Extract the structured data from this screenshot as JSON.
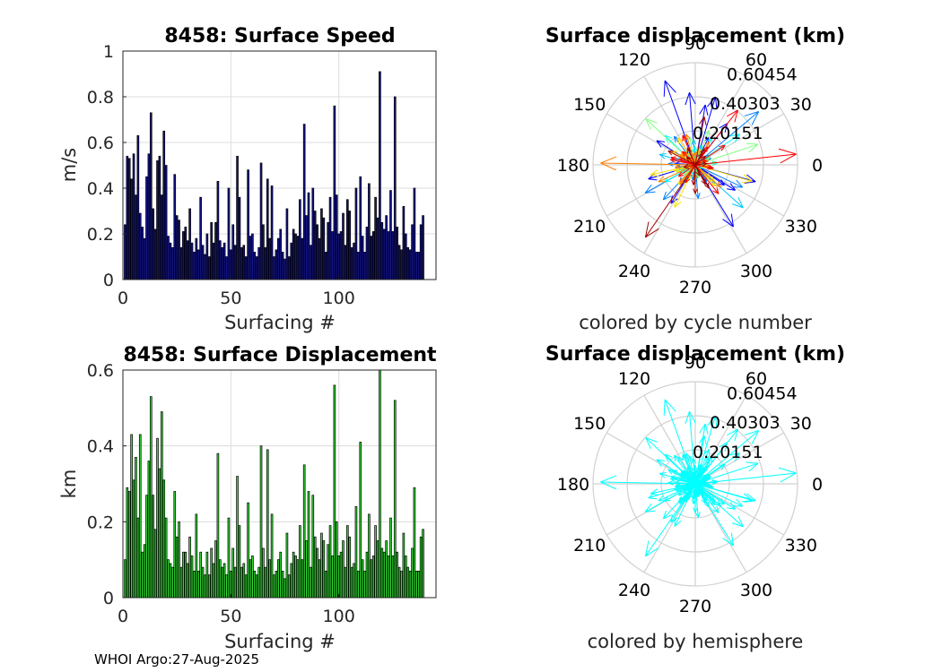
{
  "footer": "WHOI Argo:27-Aug-2025",
  "chart_data": [
    {
      "type": "bar",
      "title": "8458: Surface Speed",
      "xlabel": "Surfacing #",
      "ylabel": "m/s",
      "xlim": [
        0,
        145
      ],
      "ylim": [
        0,
        1
      ],
      "xticks": [
        "0",
        "50",
        "100"
      ],
      "yticks": [
        "0",
        "0.2",
        "0.4",
        "0.6",
        "0.8",
        "1"
      ],
      "bar_color": "#12128c",
      "values": [
        0.24,
        0.54,
        0.53,
        0.44,
        0.55,
        0.37,
        0.63,
        0.29,
        0.23,
        0.18,
        0.45,
        0.55,
        0.73,
        0.31,
        0.22,
        0.52,
        0.54,
        0.37,
        0.65,
        0.5,
        0.19,
        0.16,
        0.14,
        0.46,
        0.28,
        0.26,
        0.14,
        0.21,
        0.23,
        0.17,
        0.31,
        0.16,
        0.12,
        0.18,
        0.13,
        0.36,
        0.15,
        0.11,
        0.2,
        0.1,
        0.25,
        0.16,
        0.25,
        0.43,
        0.17,
        0.14,
        0.16,
        0.1,
        0.4,
        0.13,
        0.24,
        0.15,
        0.54,
        0.36,
        0.14,
        0.15,
        0.1,
        0.48,
        0.19,
        0.2,
        0.12,
        0.1,
        0.14,
        0.51,
        0.24,
        0.14,
        0.44,
        0.18,
        0.41,
        0.1,
        0.13,
        0.18,
        0.22,
        0.12,
        0.09,
        0.31,
        0.1,
        0.16,
        0.22,
        0.2,
        0.19,
        0.35,
        0.18,
        0.68,
        0.28,
        0.38,
        0.15,
        0.4,
        0.3,
        0.24,
        0.18,
        0.31,
        0.27,
        0.12,
        0.25,
        0.36,
        0.21,
        0.76,
        0.37,
        0.2,
        0.21,
        0.29,
        0.15,
        0.35,
        0.3,
        0.14,
        0.16,
        0.4,
        0.12,
        0.45,
        0.19,
        0.12,
        0.23,
        0.42,
        0.19,
        0.21,
        0.36,
        0.27,
        0.91,
        0.25,
        0.22,
        0.28,
        0.21,
        0.39,
        0.21,
        0.8,
        0.23,
        0.15,
        0.13,
        0.32,
        0.2,
        0.14,
        0.13,
        0.24,
        0.4,
        0.12,
        0.12,
        0.24,
        0.28
      ]
    },
    {
      "type": "bar",
      "title": "8458: Surface Displacement",
      "xlabel": "Surfacing #",
      "ylabel": "km",
      "xlim": [
        0,
        145
      ],
      "ylim": [
        0,
        0.6
      ],
      "xticks": [
        "0",
        "50",
        "100"
      ],
      "yticks": [
        "0",
        "0.2",
        "0.4",
        "0.6"
      ],
      "bar_color": "#33dd33",
      "values": [
        0.1,
        0.29,
        0.28,
        0.43,
        0.31,
        0.37,
        0.21,
        0.43,
        0.12,
        0.14,
        0.27,
        0.36,
        0.53,
        0.27,
        0.18,
        0.42,
        0.34,
        0.49,
        0.31,
        0.21,
        0.1,
        0.09,
        0.08,
        0.28,
        0.16,
        0.2,
        0.08,
        0.12,
        0.12,
        0.09,
        0.16,
        0.11,
        0.07,
        0.22,
        0.07,
        0.12,
        0.08,
        0.06,
        0.12,
        0.06,
        0.13,
        0.09,
        0.15,
        0.38,
        0.1,
        0.08,
        0.09,
        0.06,
        0.21,
        0.07,
        0.13,
        0.08,
        0.32,
        0.19,
        0.08,
        0.09,
        0.06,
        0.25,
        0.1,
        0.11,
        0.07,
        0.06,
        0.08,
        0.4,
        0.13,
        0.08,
        0.39,
        0.1,
        0.22,
        0.06,
        0.07,
        0.1,
        0.12,
        0.07,
        0.05,
        0.17,
        0.06,
        0.09,
        0.12,
        0.11,
        0.1,
        0.19,
        0.1,
        0.35,
        0.15,
        0.28,
        0.08,
        0.27,
        0.16,
        0.13,
        0.1,
        0.17,
        0.15,
        0.07,
        0.14,
        0.19,
        0.11,
        0.56,
        0.2,
        0.11,
        0.12,
        0.15,
        0.08,
        0.19,
        0.16,
        0.08,
        0.09,
        0.24,
        0.07,
        0.41,
        0.1,
        0.07,
        0.12,
        0.22,
        0.1,
        0.11,
        0.19,
        0.15,
        0.6,
        0.13,
        0.12,
        0.15,
        0.11,
        0.21,
        0.11,
        0.52,
        0.12,
        0.08,
        0.07,
        0.17,
        0.11,
        0.08,
        0.07,
        0.13,
        0.29,
        0.07,
        0.07,
        0.16,
        0.18
      ]
    },
    {
      "type": "polar-compass",
      "title": "Surface displacement (km)",
      "caption": "colored by cycle number",
      "rlim": [
        0,
        0.60454
      ],
      "rticks": [
        "0.20151",
        "0.40303",
        "0.60454"
      ],
      "angle_labels": [
        "0",
        "30",
        "60",
        "90",
        "120",
        "150",
        "180",
        "210",
        "240",
        "270",
        "300",
        "330"
      ],
      "arrow_colors": [
        "#0000ff",
        "#0080ff",
        "#00c8ff",
        "#00ffff",
        "#80ff80",
        "#ffe000",
        "#ff8000",
        "#ff0000",
        "#a00000"
      ]
    },
    {
      "type": "polar-compass",
      "title": "Surface displacement (km)",
      "caption": "colored by hemisphere",
      "rlim": [
        0,
        0.60454
      ],
      "rticks": [
        "0.20151",
        "0.40303",
        "0.60454"
      ],
      "angle_labels": [
        "0",
        "30",
        "60",
        "90",
        "120",
        "150",
        "180",
        "210",
        "240",
        "270",
        "300",
        "330"
      ],
      "arrow_colors": [
        "#00ffff"
      ]
    }
  ]
}
